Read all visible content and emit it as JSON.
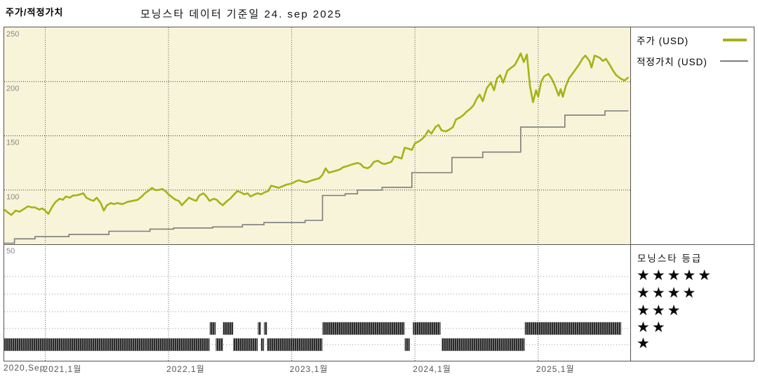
{
  "header": {
    "left_title": "주가/적정가치",
    "center_title": "모닝스타 데이터 기준일 24. sep 2025"
  },
  "legend": {
    "price_label": "주가 (USD)",
    "fair_value_label": "적정가치 (USD)"
  },
  "rating_panel": {
    "title": "모닝스타 등급",
    "rows": [
      "★★★★★",
      "★★★★",
      "★★★",
      "★★",
      "★"
    ]
  },
  "colors": {
    "plot_background": "#f7f4d9",
    "price_line": "#a6b216",
    "fair_value_line": "#7d7d7d",
    "grid_dark": "#3a3a3a",
    "grid_light": "#999999",
    "rating_bar_dark": "#2b2b2b",
    "rating_bar_light": "#8a8a8a",
    "axis_text": "#888888",
    "border": "#555555"
  },
  "axis": {
    "y_ticks": [
      250,
      200,
      150,
      100,
      50
    ],
    "x_ticks": [
      {
        "label": "2020,Sep",
        "t": 0
      },
      {
        "label": "2021,1월",
        "t": 4
      },
      {
        "label": "2022,1월",
        "t": 16
      },
      {
        "label": "2023,1월",
        "t": 28
      },
      {
        "label": "2024,1월",
        "t": 40
      },
      {
        "label": "2025,1월",
        "t": 52
      }
    ]
  },
  "chart_data": {
    "type": "line",
    "title": "모닝스타 데이터 기준일 24. sep 2025",
    "x_unit": "months since Sep 2020",
    "x_range": [
      0,
      60.8
    ],
    "shaded_value_range": [
      50,
      250
    ],
    "ylim": [
      50,
      250
    ],
    "grid": true,
    "legend_position": "top-right",
    "series": [
      {
        "name": "주가 (USD)",
        "style": "line",
        "points": [
          [
            0,
            82
          ],
          [
            0.4,
            79
          ],
          [
            0.7,
            77
          ],
          [
            1.1,
            81
          ],
          [
            1.5,
            80
          ],
          [
            2,
            83
          ],
          [
            2.3,
            85
          ],
          [
            2.7,
            84
          ],
          [
            3,
            84
          ],
          [
            3.4,
            82
          ],
          [
            3.7,
            83
          ],
          [
            4,
            81
          ],
          [
            4.3,
            78
          ],
          [
            4.7,
            85
          ],
          [
            5,
            89
          ],
          [
            5.4,
            92
          ],
          [
            5.7,
            91
          ],
          [
            6,
            94
          ],
          [
            6.4,
            93
          ],
          [
            6.7,
            95
          ],
          [
            7,
            95
          ],
          [
            7.4,
            96
          ],
          [
            7.7,
            97
          ],
          [
            8,
            93
          ],
          [
            8.4,
            91
          ],
          [
            8.7,
            90
          ],
          [
            9,
            93
          ],
          [
            9.4,
            88
          ],
          [
            9.7,
            81
          ],
          [
            10,
            86
          ],
          [
            10.4,
            88
          ],
          [
            10.7,
            87
          ],
          [
            11,
            88
          ],
          [
            11.5,
            87
          ],
          [
            12,
            89
          ],
          [
            12.5,
            90
          ],
          [
            13,
            91
          ],
          [
            13.4,
            94
          ],
          [
            13.7,
            97
          ],
          [
            14,
            99
          ],
          [
            14.4,
            102
          ],
          [
            14.7,
            100
          ],
          [
            15,
            100
          ],
          [
            15.4,
            101
          ],
          [
            15.7,
            99
          ],
          [
            16,
            96
          ],
          [
            16.4,
            93
          ],
          [
            16.7,
            91
          ],
          [
            17,
            90
          ],
          [
            17.3,
            86
          ],
          [
            17.6,
            89
          ],
          [
            18,
            93
          ],
          [
            18.4,
            91
          ],
          [
            18.7,
            90
          ],
          [
            19,
            95
          ],
          [
            19.4,
            97
          ],
          [
            19.7,
            94
          ],
          [
            20,
            90
          ],
          [
            20.4,
            92
          ],
          [
            20.7,
            91
          ],
          [
            21,
            88
          ],
          [
            21.3,
            86
          ],
          [
            21.6,
            89
          ],
          [
            22,
            92
          ],
          [
            22.4,
            96
          ],
          [
            22.7,
            99
          ],
          [
            23,
            98
          ],
          [
            23.4,
            96
          ],
          [
            23.7,
            97
          ],
          [
            24,
            94
          ],
          [
            24.4,
            96
          ],
          [
            24.7,
            97
          ],
          [
            25,
            96
          ],
          [
            25.4,
            98
          ],
          [
            25.7,
            99
          ],
          [
            26,
            104
          ],
          [
            26.4,
            103
          ],
          [
            26.7,
            102
          ],
          [
            27,
            103
          ],
          [
            27.5,
            105
          ],
          [
            28,
            106
          ],
          [
            28.4,
            108
          ],
          [
            28.7,
            109
          ],
          [
            29,
            108
          ],
          [
            29.4,
            107
          ],
          [
            29.7,
            108
          ],
          [
            30,
            109
          ],
          [
            30.4,
            110
          ],
          [
            30.7,
            111
          ],
          [
            31,
            114
          ],
          [
            31.3,
            120
          ],
          [
            31.6,
            116
          ],
          [
            32,
            117
          ],
          [
            32.4,
            118
          ],
          [
            32.7,
            119
          ],
          [
            33,
            121
          ],
          [
            33.4,
            122
          ],
          [
            33.7,
            123
          ],
          [
            34,
            124
          ],
          [
            34.4,
            125
          ],
          [
            34.7,
            124
          ],
          [
            35,
            121
          ],
          [
            35.4,
            120
          ],
          [
            35.7,
            122
          ],
          [
            36,
            126
          ],
          [
            36.4,
            127
          ],
          [
            36.7,
            125
          ],
          [
            37,
            124
          ],
          [
            37.4,
            125
          ],
          [
            37.7,
            126
          ],
          [
            38,
            131
          ],
          [
            38.4,
            130
          ],
          [
            38.7,
            129
          ],
          [
            39,
            139
          ],
          [
            39.4,
            138
          ],
          [
            39.7,
            137
          ],
          [
            40,
            143
          ],
          [
            40.4,
            145
          ],
          [
            40.7,
            147
          ],
          [
            41,
            150
          ],
          [
            41.3,
            155
          ],
          [
            41.6,
            152
          ],
          [
            42,
            158
          ],
          [
            42.3,
            160
          ],
          [
            42.6,
            155
          ],
          [
            43,
            154
          ],
          [
            43.4,
            156
          ],
          [
            43.7,
            158
          ],
          [
            44,
            165
          ],
          [
            44.4,
            167
          ],
          [
            44.7,
            169
          ],
          [
            45,
            172
          ],
          [
            45.4,
            175
          ],
          [
            45.7,
            178
          ],
          [
            46,
            184
          ],
          [
            46.3,
            188
          ],
          [
            46.6,
            182
          ],
          [
            47,
            194
          ],
          [
            47.4,
            199
          ],
          [
            47.7,
            192
          ],
          [
            48,
            203
          ],
          [
            48.3,
            206
          ],
          [
            48.6,
            199
          ],
          [
            49,
            210
          ],
          [
            49.4,
            213
          ],
          [
            49.7,
            215
          ],
          [
            50,
            220
          ],
          [
            50.3,
            226
          ],
          [
            50.6,
            218
          ],
          [
            50.9,
            225
          ],
          [
            51.2,
            196
          ],
          [
            51.5,
            181
          ],
          [
            51.8,
            192
          ],
          [
            52,
            186
          ],
          [
            52.3,
            200
          ],
          [
            52.6,
            205
          ],
          [
            53,
            207
          ],
          [
            53.3,
            203
          ],
          [
            53.6,
            197
          ],
          [
            54,
            187
          ],
          [
            54.2,
            193
          ],
          [
            54.4,
            186
          ],
          [
            54.7,
            196
          ],
          [
            55,
            203
          ],
          [
            55.4,
            208
          ],
          [
            55.7,
            212
          ],
          [
            56,
            216
          ],
          [
            56.3,
            221
          ],
          [
            56.6,
            224
          ],
          [
            57,
            219
          ],
          [
            57.2,
            213
          ],
          [
            57.5,
            224
          ],
          [
            58,
            222
          ],
          [
            58.3,
            219
          ],
          [
            58.6,
            221
          ],
          [
            59,
            215
          ],
          [
            59.3,
            210
          ],
          [
            59.6,
            206
          ],
          [
            60,
            203
          ],
          [
            60.4,
            201
          ],
          [
            60.8,
            204
          ]
        ]
      },
      {
        "name": "적정가치 (USD)",
        "style": "step",
        "points": [
          [
            0,
            51
          ],
          [
            1.0,
            55
          ],
          [
            3.0,
            57
          ],
          [
            6.3,
            59
          ],
          [
            10.2,
            62
          ],
          [
            14.2,
            64
          ],
          [
            16.5,
            65
          ],
          [
            20.3,
            66
          ],
          [
            23.2,
            68
          ],
          [
            25.3,
            70
          ],
          [
            29.3,
            72
          ],
          [
            31.0,
            95
          ],
          [
            33.2,
            96.5
          ],
          [
            34.4,
            100
          ],
          [
            36.8,
            102.5
          ],
          [
            39.7,
            116
          ],
          [
            43.6,
            130
          ],
          [
            46.6,
            135
          ],
          [
            50.3,
            158
          ],
          [
            54.6,
            169
          ],
          [
            58.5,
            173
          ],
          [
            60.8,
            173
          ]
        ]
      }
    ],
    "rating_timeline": {
      "rows": [
        5,
        4,
        3,
        2,
        1
      ],
      "segments": {
        "two_star": [
          [
            20.0,
            20.6
          ],
          [
            21.3,
            22.3
          ],
          [
            24.7,
            25.0
          ],
          [
            25.3,
            25.6
          ],
          [
            31.0,
            39.0
          ],
          [
            39.8,
            42.5
          ],
          [
            50.7,
            60.1
          ]
        ],
        "one_star": [
          [
            0,
            20.0
          ],
          [
            20.6,
            21.3
          ],
          [
            22.3,
            24.7
          ],
          [
            25.0,
            25.3
          ],
          [
            25.6,
            31.0
          ],
          [
            39.0,
            39.5
          ],
          [
            42.6,
            50.7
          ]
        ]
      }
    }
  }
}
